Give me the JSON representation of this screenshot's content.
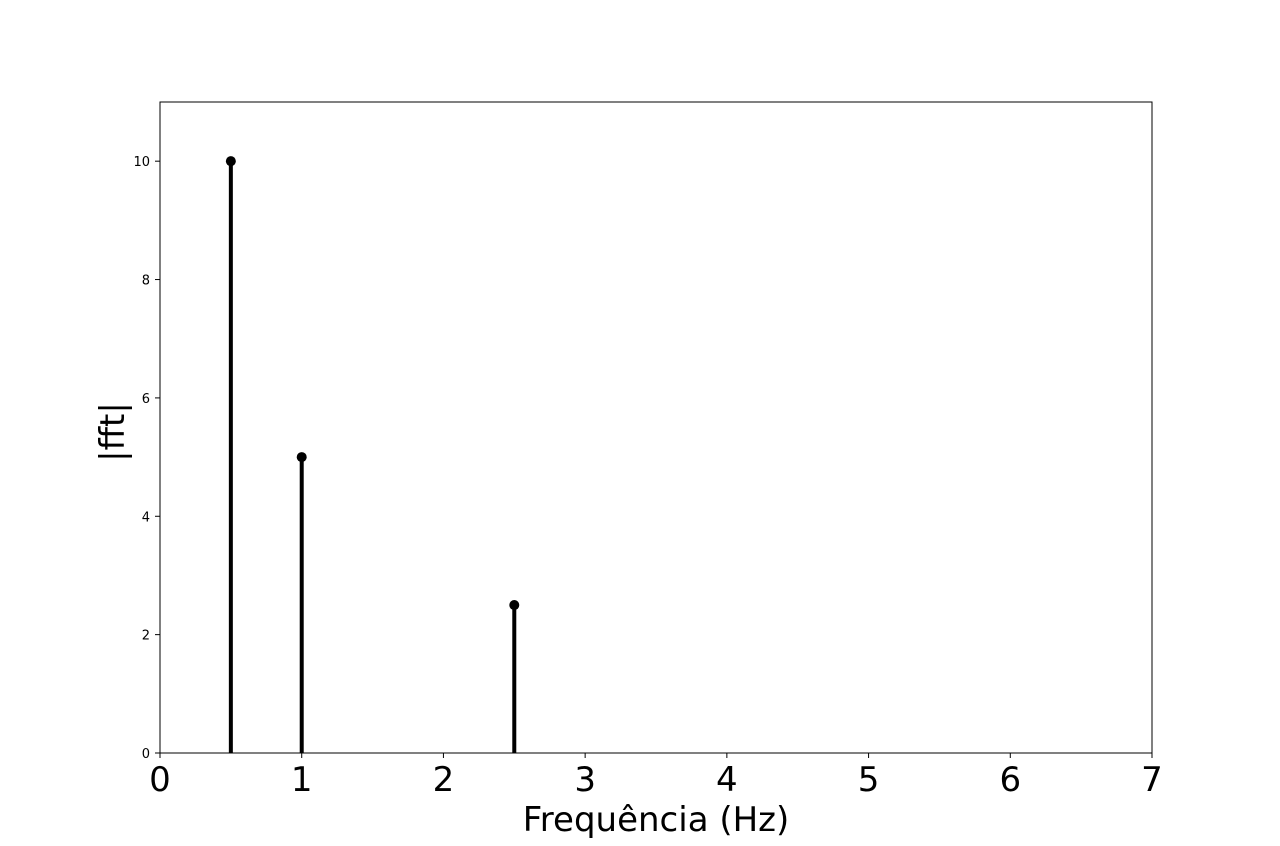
{
  "chart_data": {
    "type": "stem",
    "title": "",
    "xlabel": "Frequência (Hz)",
    "ylabel": "|fft|",
    "xlim": [
      0,
      7
    ],
    "ylim": [
      0,
      11
    ],
    "x_ticks": [
      "0",
      "1",
      "2",
      "3",
      "4",
      "5",
      "6",
      "7"
    ],
    "y_ticks": [
      "0",
      "2",
      "4",
      "6",
      "8",
      "10"
    ],
    "grid": false,
    "legend": "none",
    "series": [
      {
        "color": "#000000",
        "points": [
          {
            "x": 0.5,
            "y": 10
          },
          {
            "x": 1.0,
            "y": 5
          },
          {
            "x": 2.5,
            "y": 2.5
          }
        ]
      }
    ]
  }
}
